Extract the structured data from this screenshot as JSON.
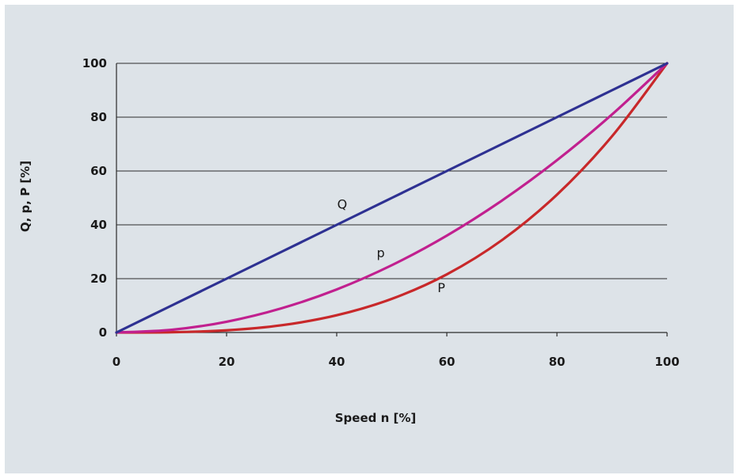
{
  "chart_data": {
    "type": "line",
    "title": "",
    "xlabel": "Speed n  [%]",
    "ylabel": "Q, p, P [%]",
    "xlim": [
      0,
      100
    ],
    "ylim": [
      0,
      100
    ],
    "x_ticks": [
      "0",
      "20",
      "40",
      "60",
      "80",
      "100"
    ],
    "y_ticks": [
      "0",
      "20",
      "40",
      "60",
      "80",
      "100"
    ],
    "grid": "horizontal",
    "x": [
      0,
      10,
      20,
      30,
      40,
      50,
      60,
      70,
      80,
      90,
      100
    ],
    "series": [
      {
        "name": "Q",
        "color": "#2e3192",
        "values": [
          0,
          10,
          20,
          30,
          40,
          50,
          60,
          70,
          80,
          90,
          100
        ]
      },
      {
        "name": "p",
        "color": "#c1208f",
        "values": [
          0,
          1,
          4,
          9,
          16,
          25,
          36,
          49,
          64,
          81,
          100
        ]
      },
      {
        "name": "P",
        "color": "#c8282a",
        "values": [
          0,
          0.1,
          0.8,
          2.7,
          6.4,
          12.5,
          21.6,
          34.3,
          51.2,
          72.9,
          100
        ]
      }
    ],
    "annotations": [
      {
        "text": "Q",
        "x": 41,
        "y": 46
      },
      {
        "text": "p",
        "x": 48,
        "y": 28
      },
      {
        "text": "P",
        "x": 59,
        "y": 15
      }
    ]
  }
}
